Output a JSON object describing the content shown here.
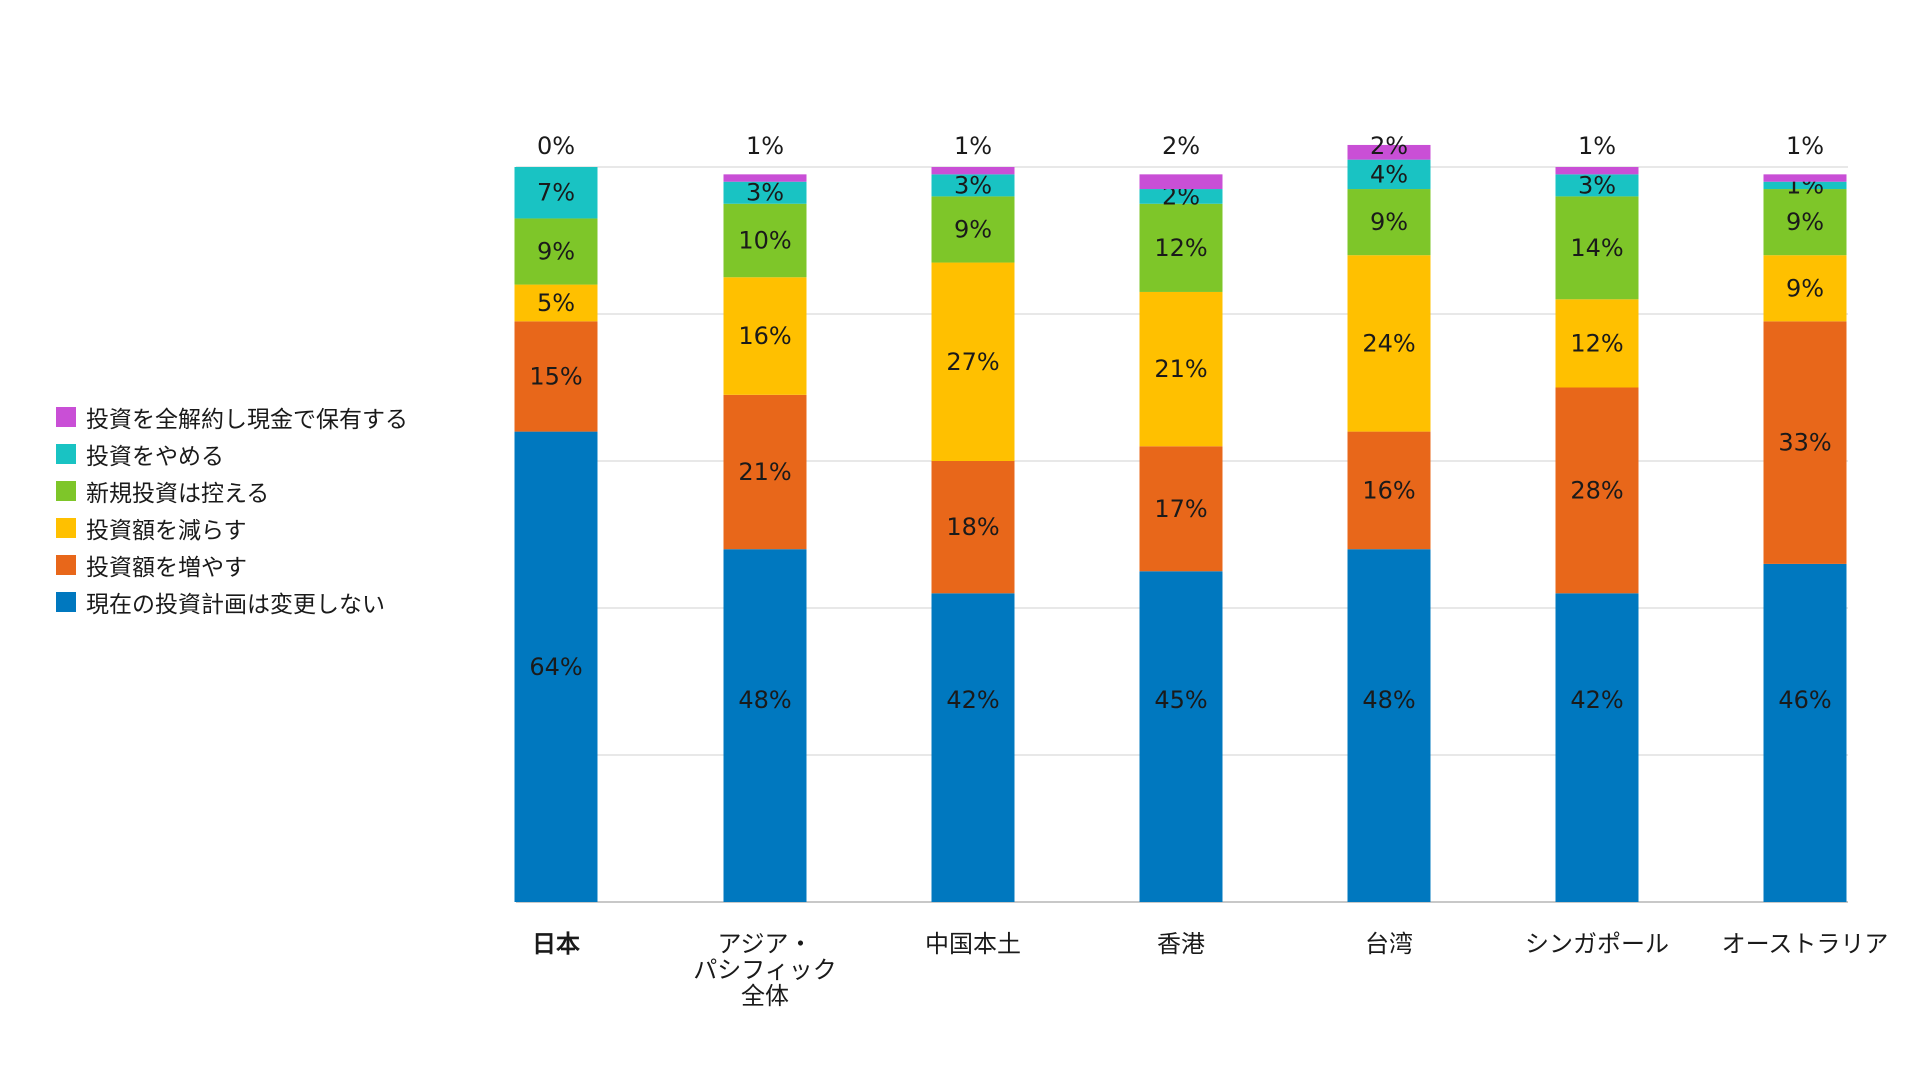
{
  "chart_data": {
    "type": "bar",
    "stacked": true,
    "categories": [
      "日本",
      "アジア・パシフィック全体",
      "中国本土",
      "香港",
      "台湾",
      "シンガポール",
      "オーストラリア"
    ],
    "category_label_lines": [
      [
        "日本"
      ],
      [
        "アジア・",
        "パシフィック",
        "全体"
      ],
      [
        "中国本土"
      ],
      [
        "香港"
      ],
      [
        "台湾"
      ],
      [
        "シンガポール"
      ],
      [
        "オーストラリア"
      ]
    ],
    "bold_categories": [
      "日本"
    ],
    "series": [
      {
        "name": "現在の投資計画は変更しない",
        "color": "#0078BF",
        "values": [
          64,
          48,
          42,
          45,
          48,
          42,
          46
        ]
      },
      {
        "name": "投資額を増やす",
        "color": "#E8671A",
        "values": [
          15,
          21,
          18,
          17,
          16,
          28,
          33
        ]
      },
      {
        "name": "投資額を減らす",
        "color": "#FFC000",
        "values": [
          5,
          16,
          27,
          21,
          24,
          12,
          9
        ]
      },
      {
        "name": "新規投資は控える",
        "color": "#7EC629",
        "values": [
          9,
          10,
          9,
          12,
          9,
          14,
          9
        ]
      },
      {
        "name": "投資をやめる",
        "color": "#19C3C3",
        "values": [
          7,
          3,
          3,
          2,
          4,
          3,
          1
        ]
      },
      {
        "name": "投資を全解約し現金で保有する",
        "color": "#C94FD6",
        "values": [
          0,
          1,
          1,
          2,
          2,
          1,
          1
        ]
      }
    ],
    "value_suffix": "%",
    "ylim": [
      0,
      100
    ],
    "grid": true,
    "legend": "left"
  }
}
